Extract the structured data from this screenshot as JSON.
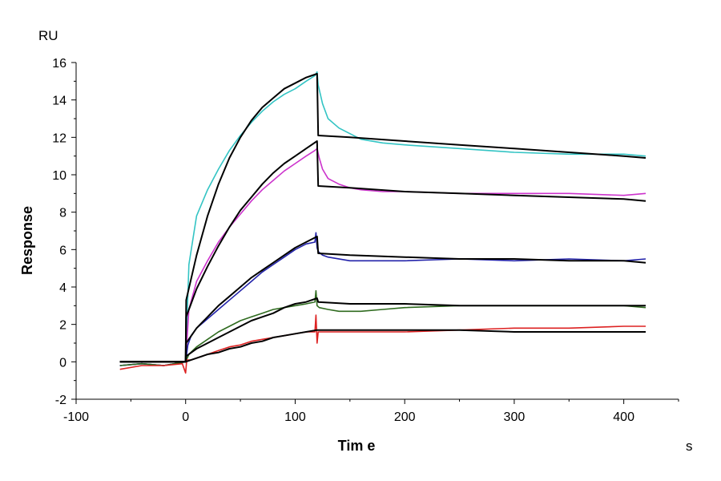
{
  "chart_data": {
    "type": "line",
    "xlabel": "Tim e",
    "x_unit": "s",
    "ylabel": "Response",
    "y_unit": "RU",
    "xlim": [
      -100,
      450
    ],
    "ylim": [
      -2,
      16
    ],
    "x_ticks": [
      -100,
      0,
      100,
      200,
      300,
      400
    ],
    "y_ticks": [
      -2,
      0,
      2,
      4,
      6,
      8,
      10,
      12,
      14,
      16
    ],
    "grid": false,
    "series": [
      {
        "color": "#33c4c4",
        "role": "data",
        "x": [
          -60,
          -40,
          -20,
          0,
          3,
          10,
          20,
          30,
          40,
          50,
          60,
          70,
          80,
          90,
          100,
          110,
          118,
          120,
          121,
          125,
          130,
          140,
          150,
          160,
          180,
          200,
          250,
          300,
          350,
          400,
          420
        ],
        "y": [
          -0.2,
          -0.1,
          -0.2,
          0.0,
          5.2,
          7.8,
          9.2,
          10.3,
          11.3,
          12.1,
          12.8,
          13.4,
          13.9,
          14.3,
          14.6,
          15.0,
          15.3,
          15.5,
          14.8,
          13.8,
          13.0,
          12.5,
          12.2,
          11.9,
          11.7,
          11.6,
          11.4,
          11.2,
          11.1,
          11.1,
          11.0
        ]
      },
      {
        "color": "#cc33cc",
        "role": "data",
        "x": [
          -60,
          -40,
          -20,
          0,
          3,
          10,
          20,
          30,
          40,
          50,
          60,
          70,
          80,
          90,
          100,
          110,
          118,
          120,
          122,
          125,
          130,
          140,
          150,
          160,
          180,
          200,
          250,
          300,
          350,
          400,
          420
        ],
        "y": [
          -0.2,
          -0.1,
          -0.2,
          0.0,
          2.8,
          4.3,
          5.4,
          6.4,
          7.2,
          7.9,
          8.6,
          9.2,
          9.7,
          10.2,
          10.6,
          11.0,
          11.3,
          11.4,
          10.9,
          10.3,
          9.8,
          9.5,
          9.3,
          9.2,
          9.1,
          9.1,
          9.0,
          9.0,
          9.0,
          8.9,
          9.0
        ]
      },
      {
        "color": "#2222aa",
        "role": "data",
        "x": [
          -60,
          -40,
          -20,
          0,
          2,
          5,
          10,
          20,
          30,
          40,
          50,
          60,
          70,
          80,
          90,
          100,
          110,
          118,
          119,
          120,
          121,
          125,
          130,
          150,
          200,
          250,
          300,
          350,
          400,
          420
        ],
        "y": [
          -0.2,
          -0.1,
          -0.2,
          0.0,
          0.9,
          1.4,
          1.8,
          2.3,
          2.8,
          3.3,
          3.8,
          4.3,
          4.8,
          5.2,
          5.6,
          6.0,
          6.3,
          6.4,
          6.9,
          6.1,
          5.9,
          5.7,
          5.6,
          5.4,
          5.4,
          5.5,
          5.4,
          5.5,
          5.4,
          5.5
        ]
      },
      {
        "color": "#2f6b1f",
        "role": "data",
        "x": [
          -60,
          -40,
          -20,
          0,
          3,
          10,
          20,
          30,
          40,
          50,
          60,
          70,
          80,
          90,
          100,
          110,
          118,
          119,
          120,
          122,
          130,
          140,
          160,
          180,
          200,
          250,
          300,
          350,
          400,
          420
        ],
        "y": [
          -0.2,
          -0.1,
          -0.2,
          0.0,
          0.4,
          0.8,
          1.2,
          1.6,
          1.9,
          2.2,
          2.4,
          2.6,
          2.8,
          2.9,
          3.0,
          3.1,
          3.2,
          3.8,
          3.0,
          2.9,
          2.8,
          2.7,
          2.7,
          2.8,
          2.9,
          3.0,
          3.0,
          3.0,
          3.0,
          2.9
        ]
      },
      {
        "color": "#dd2222",
        "role": "data",
        "x": [
          -60,
          -40,
          -20,
          -3,
          0,
          1,
          5,
          10,
          20,
          30,
          40,
          50,
          60,
          70,
          80,
          90,
          100,
          110,
          118,
          119,
          120,
          121,
          125,
          140,
          160,
          200,
          250,
          300,
          350,
          400,
          420
        ],
        "y": [
          -0.4,
          -0.2,
          -0.2,
          -0.1,
          -0.6,
          0.1,
          0.1,
          0.2,
          0.4,
          0.6,
          0.8,
          0.9,
          1.1,
          1.2,
          1.3,
          1.4,
          1.5,
          1.6,
          1.6,
          2.5,
          1.0,
          1.6,
          1.6,
          1.6,
          1.6,
          1.6,
          1.7,
          1.8,
          1.8,
          1.9,
          1.9
        ]
      },
      {
        "color": "#000000",
        "role": "fit",
        "x": [
          -60,
          0,
          0.5,
          10,
          20,
          30,
          40,
          50,
          60,
          70,
          80,
          90,
          100,
          110,
          120,
          121,
          150,
          200,
          250,
          300,
          350,
          400,
          420
        ],
        "y": [
          0.0,
          0.0,
          3.3,
          5.7,
          7.8,
          9.5,
          10.9,
          12.0,
          12.9,
          13.6,
          14.1,
          14.6,
          14.9,
          15.2,
          15.4,
          12.1,
          12.0,
          11.8,
          11.6,
          11.4,
          11.2,
          11.0,
          10.9
        ]
      },
      {
        "color": "#000000",
        "role": "fit",
        "x": [
          -60,
          0,
          0.5,
          10,
          20,
          30,
          40,
          50,
          60,
          70,
          80,
          90,
          100,
          110,
          120,
          121,
          150,
          200,
          250,
          300,
          350,
          400,
          420
        ],
        "y": [
          0.0,
          0.0,
          2.4,
          3.9,
          5.1,
          6.2,
          7.2,
          8.1,
          8.8,
          9.5,
          10.1,
          10.6,
          11.0,
          11.4,
          11.8,
          9.4,
          9.3,
          9.1,
          9.0,
          8.9,
          8.8,
          8.7,
          8.6
        ]
      },
      {
        "color": "#000000",
        "role": "fit",
        "x": [
          -60,
          0,
          0.5,
          10,
          20,
          30,
          40,
          50,
          60,
          70,
          80,
          90,
          100,
          110,
          120,
          121,
          150,
          200,
          250,
          300,
          350,
          400,
          420
        ],
        "y": [
          0.0,
          0.0,
          1.0,
          1.8,
          2.4,
          3.0,
          3.5,
          4.0,
          4.5,
          4.9,
          5.3,
          5.7,
          6.1,
          6.4,
          6.7,
          5.8,
          5.7,
          5.6,
          5.5,
          5.5,
          5.4,
          5.4,
          5.3
        ]
      },
      {
        "color": "#000000",
        "role": "fit",
        "x": [
          -60,
          0,
          0.5,
          10,
          20,
          30,
          40,
          50,
          60,
          70,
          80,
          90,
          100,
          110,
          120,
          121,
          150,
          200,
          250,
          300,
          350,
          400,
          420
        ],
        "y": [
          0.0,
          0.0,
          0.3,
          0.7,
          1.0,
          1.3,
          1.6,
          1.9,
          2.2,
          2.4,
          2.6,
          2.9,
          3.1,
          3.2,
          3.4,
          3.2,
          3.1,
          3.1,
          3.0,
          3.0,
          3.0,
          3.0,
          3.0
        ]
      },
      {
        "color": "#000000",
        "role": "fit",
        "x": [
          -60,
          0,
          10,
          20,
          30,
          40,
          50,
          60,
          70,
          80,
          90,
          100,
          110,
          120,
          150,
          200,
          250,
          300,
          350,
          400,
          420
        ],
        "y": [
          0.0,
          0.0,
          0.2,
          0.4,
          0.5,
          0.7,
          0.8,
          1.0,
          1.1,
          1.3,
          1.4,
          1.5,
          1.6,
          1.7,
          1.7,
          1.7,
          1.7,
          1.6,
          1.6,
          1.6,
          1.6
        ]
      }
    ]
  }
}
